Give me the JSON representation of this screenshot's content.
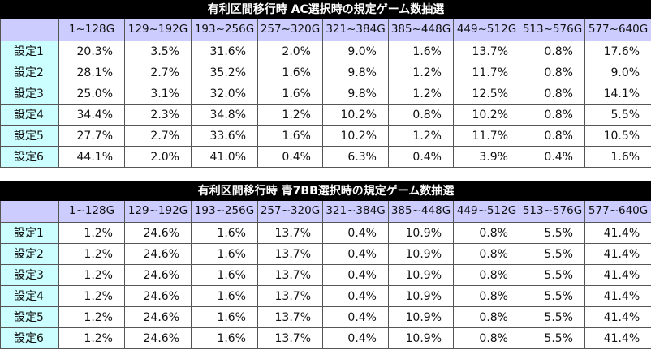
{
  "tables": [
    {
      "title": "有利区間移行時 AC選択時の規定ゲーム数抽選",
      "columns": [
        "1~128G",
        "129~192G",
        "193~256G",
        "257~320G",
        "321~384G",
        "385~448G",
        "449~512G",
        "513~576G",
        "577~640G"
      ],
      "rows": [
        {
          "label": "設定1",
          "values": [
            "20.3%",
            "3.5%",
            "31.6%",
            "2.0%",
            "9.0%",
            "1.6%",
            "13.7%",
            "0.8%",
            "17.6%"
          ]
        },
        {
          "label": "設定2",
          "values": [
            "28.1%",
            "2.7%",
            "35.2%",
            "1.6%",
            "9.8%",
            "1.2%",
            "11.7%",
            "0.8%",
            "9.0%"
          ]
        },
        {
          "label": "設定3",
          "values": [
            "25.0%",
            "3.1%",
            "32.0%",
            "1.6%",
            "9.8%",
            "1.2%",
            "12.5%",
            "0.8%",
            "14.1%"
          ]
        },
        {
          "label": "設定4",
          "values": [
            "34.4%",
            "2.3%",
            "34.8%",
            "1.2%",
            "10.2%",
            "0.8%",
            "10.2%",
            "0.8%",
            "5.5%"
          ]
        },
        {
          "label": "設定5",
          "values": [
            "27.7%",
            "2.7%",
            "33.6%",
            "1.6%",
            "10.2%",
            "1.2%",
            "11.7%",
            "0.8%",
            "10.5%"
          ]
        },
        {
          "label": "設定6",
          "values": [
            "44.1%",
            "2.0%",
            "41.0%",
            "0.4%",
            "6.3%",
            "0.4%",
            "3.9%",
            "0.4%",
            "1.6%"
          ]
        }
      ]
    },
    {
      "title": "有利区間移行時 青7BB選択時の規定ゲーム数抽選",
      "columns": [
        "1~128G",
        "129~192G",
        "193~256G",
        "257~320G",
        "321~384G",
        "385~448G",
        "449~512G",
        "513~576G",
        "577~640G"
      ],
      "rows": [
        {
          "label": "設定1",
          "values": [
            "1.2%",
            "24.6%",
            "1.6%",
            "13.7%",
            "0.4%",
            "10.9%",
            "0.8%",
            "5.5%",
            "41.4%"
          ]
        },
        {
          "label": "設定2",
          "values": [
            "1.2%",
            "24.6%",
            "1.6%",
            "13.7%",
            "0.4%",
            "10.9%",
            "0.8%",
            "5.5%",
            "41.4%"
          ]
        },
        {
          "label": "設定3",
          "values": [
            "1.2%",
            "24.6%",
            "1.6%",
            "13.7%",
            "0.4%",
            "10.9%",
            "0.8%",
            "5.5%",
            "41.4%"
          ]
        },
        {
          "label": "設定4",
          "values": [
            "1.2%",
            "24.6%",
            "1.6%",
            "13.7%",
            "0.4%",
            "10.9%",
            "0.8%",
            "5.5%",
            "41.4%"
          ]
        },
        {
          "label": "設定5",
          "values": [
            "1.2%",
            "24.6%",
            "1.6%",
            "13.7%",
            "0.4%",
            "10.9%",
            "0.8%",
            "5.5%",
            "41.4%"
          ]
        },
        {
          "label": "設定6",
          "values": [
            "1.2%",
            "24.6%",
            "1.6%",
            "13.7%",
            "0.4%",
            "10.9%",
            "0.8%",
            "5.5%",
            "41.4%"
          ]
        }
      ]
    }
  ]
}
